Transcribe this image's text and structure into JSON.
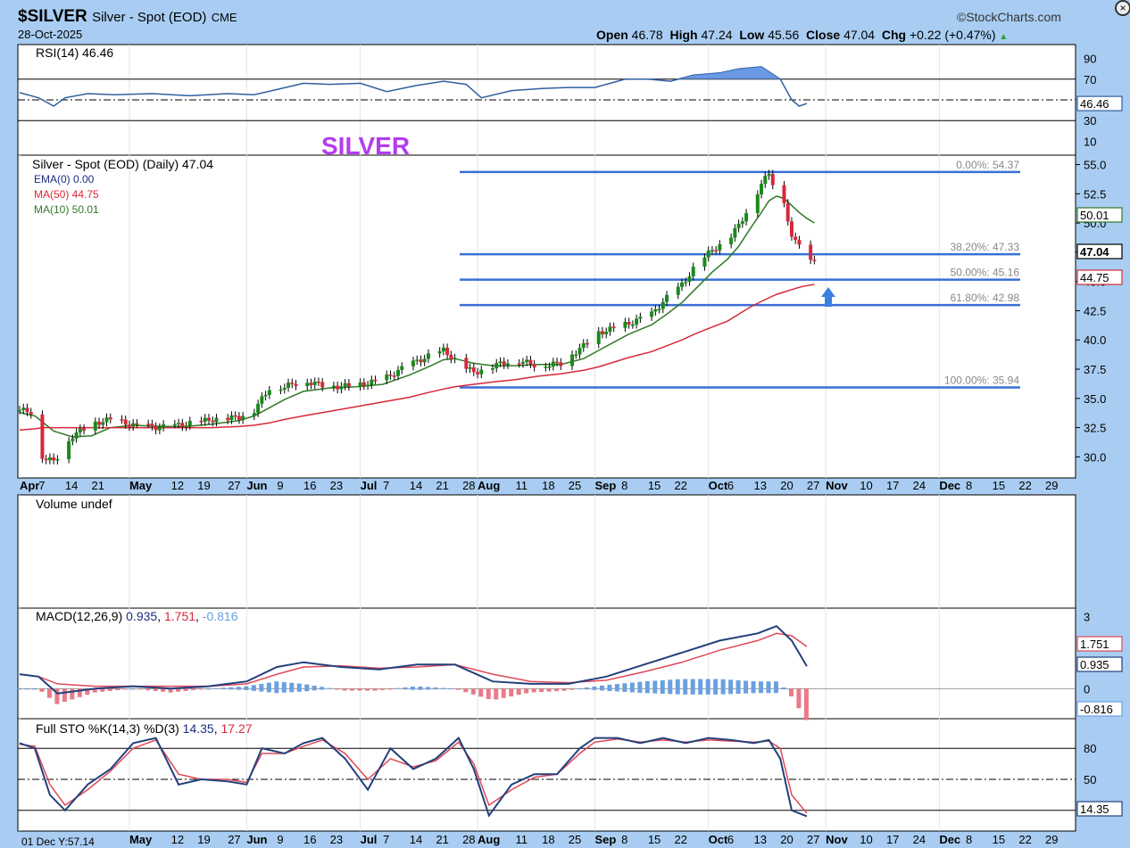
{
  "header": {
    "symbol": "$SILVER",
    "name": "Silver - Spot (EOD)",
    "exchange": "CME",
    "date": "28-Oct-2025",
    "brand": "©StockCharts.com",
    "open_label": "Open",
    "open": "46.78",
    "high_label": "High",
    "high": "47.24",
    "low_label": "Low",
    "low": "45.56",
    "close_label": "Close",
    "close": "47.04",
    "chg_label": "Chg",
    "chg": "+0.22 (+0.47%)"
  },
  "annotation_text": "SILVER",
  "panels": {
    "rsi": {
      "label": "RSI(14)",
      "value": "46.46",
      "ticks": [
        "90",
        "70",
        "50",
        "30",
        "10"
      ],
      "tag": "46.46"
    },
    "price": {
      "label": "Silver - Spot (EOD) (Daily) 47.04",
      "legend": [
        {
          "text": "EMA(0) 0.00",
          "color": "#1a2f80"
        },
        {
          "text": "MA(50) 44.75",
          "color": "#d8283a"
        },
        {
          "text": "MA(10) 50.01",
          "color": "#2f7a26"
        }
      ],
      "ticks": [
        "55.0",
        "52.5",
        "50.0",
        "47.5",
        "45.0",
        "42.5",
        "40.0",
        "37.5",
        "35.0",
        "32.5",
        "30.0"
      ],
      "tags": {
        "ma10": "50.01",
        "close": "47.04",
        "ma50": "44.75"
      }
    },
    "volume": {
      "label": "Volume undef"
    },
    "macd": {
      "label": "MACD(12,26,9)",
      "v1": "0.935",
      "v2": "1.751",
      "v3": "-0.816",
      "ticks": [
        "3",
        "2",
        "0"
      ],
      "tags": {
        "signal": "1.751",
        "macd": "0.935",
        "hist": "-0.816"
      }
    },
    "sto": {
      "label": "Full STO %K(14,3) %D(3)",
      "v1": "14.35",
      "v2": "17.27",
      "ticks": [
        "80",
        "50"
      ],
      "tag": "14.35"
    }
  },
  "x_axis": {
    "labels": [
      {
        "t": "Apr",
        "b": true,
        "d": 0
      },
      {
        "t": "7",
        "d": 5
      },
      {
        "t": "14",
        "d": 12
      },
      {
        "t": "21",
        "d": 19
      },
      {
        "t": "May",
        "b": true,
        "d": 29
      },
      {
        "t": "12",
        "d": 40
      },
      {
        "t": "19",
        "d": 47
      },
      {
        "t": "27",
        "d": 55
      },
      {
        "t": "Jun",
        "b": true,
        "d": 60
      },
      {
        "t": "9",
        "d": 68
      },
      {
        "t": "16",
        "d": 75
      },
      {
        "t": "23",
        "d": 82
      },
      {
        "t": "Jul",
        "b": true,
        "d": 90
      },
      {
        "t": "7",
        "d": 96
      },
      {
        "t": "14",
        "d": 103
      },
      {
        "t": "21",
        "d": 110
      },
      {
        "t": "28",
        "d": 117
      },
      {
        "t": "Aug",
        "b": true,
        "d": 121
      },
      {
        "t": "11",
        "d": 131
      },
      {
        "t": "18",
        "d": 138
      },
      {
        "t": "25",
        "d": 145
      },
      {
        "t": "Sep",
        "b": true,
        "d": 152
      },
      {
        "t": "8",
        "d": 159
      },
      {
        "t": "15",
        "d": 166
      },
      {
        "t": "22",
        "d": 173
      },
      {
        "t": "Oct",
        "b": true,
        "d": 182
      },
      {
        "t": "6",
        "d": 187
      },
      {
        "t": "13",
        "d": 194
      },
      {
        "t": "20",
        "d": 201
      },
      {
        "t": "27",
        "d": 208
      },
      {
        "t": "Nov",
        "b": true,
        "d": 213
      },
      {
        "t": "10",
        "d": 222
      },
      {
        "t": "17",
        "d": 229
      },
      {
        "t": "24",
        "d": 236
      },
      {
        "t": "Dec",
        "b": true,
        "d": 243
      },
      {
        "t": "8",
        "d": 250
      },
      {
        "t": "15",
        "d": 257
      },
      {
        "t": "22",
        "d": 264
      },
      {
        "t": "29",
        "d": 271
      }
    ],
    "footer_note": "01 Dec Y:57.14"
  },
  "chart_data": {
    "type": "line",
    "title": "$SILVER Silver - Spot (EOD) CME",
    "xlabel": "",
    "ylabel": "",
    "ylim": [
      28.5,
      55.5
    ],
    "x": [
      "2025-04-01",
      "2025-04-05",
      "2025-04-07",
      "2025-04-10",
      "2025-04-15",
      "2025-04-20",
      "2025-04-25",
      "2025-05-01",
      "2025-05-08",
      "2025-05-15",
      "2025-05-22",
      "2025-05-29",
      "2025-06-02",
      "2025-06-06",
      "2025-06-10",
      "2025-06-15",
      "2025-06-22",
      "2025-06-29",
      "2025-07-06",
      "2025-07-13",
      "2025-07-18",
      "2025-07-22",
      "2025-07-25",
      "2025-07-30",
      "2025-08-04",
      "2025-08-10",
      "2025-08-16",
      "2025-08-22",
      "2025-08-28",
      "2025-09-01",
      "2025-09-05",
      "2025-09-09",
      "2025-09-15",
      "2025-09-19",
      "2025-09-23",
      "2025-09-27",
      "2025-10-01",
      "2025-10-05",
      "2025-10-08",
      "2025-10-11",
      "2025-10-14",
      "2025-10-16",
      "2025-10-18",
      "2025-10-20",
      "2025-10-22",
      "2025-10-24",
      "2025-10-26",
      "2025-10-28"
    ],
    "series": [
      {
        "name": "Silver - Spot (EOD)",
        "values": [
          34.0,
          33.8,
          30.0,
          29.6,
          31.8,
          32.8,
          33.2,
          32.7,
          32.5,
          32.8,
          33.2,
          33.4,
          34.0,
          35.9,
          36.0,
          36.5,
          36.0,
          36.1,
          36.6,
          37.9,
          38.6,
          39.1,
          38.3,
          37.2,
          37.8,
          38.3,
          37.8,
          38.0,
          39.5,
          40.6,
          41.0,
          41.4,
          42.2,
          43.6,
          44.7,
          46.5,
          47.7,
          48.5,
          49.8,
          51.5,
          53.3,
          54.3,
          52.6,
          51.9,
          48.6,
          48.4,
          46.8,
          47.04
        ]
      },
      {
        "name": "MA(10)",
        "values": [
          33.8,
          33.5,
          33.0,
          32.2,
          31.7,
          31.8,
          32.5,
          32.7,
          32.6,
          32.6,
          32.8,
          33.1,
          33.5,
          34.2,
          34.9,
          35.6,
          35.9,
          36.0,
          36.2,
          37.0,
          37.7,
          38.3,
          38.4,
          38.0,
          37.8,
          37.8,
          37.9,
          37.9,
          38.4,
          39.1,
          39.8,
          40.5,
          41.3,
          42.2,
          43.2,
          44.5,
          45.8,
          46.9,
          48.0,
          49.5,
          50.9,
          51.9,
          52.3,
          52.1,
          51.5,
          50.9,
          50.4,
          50.01
        ]
      },
      {
        "name": "MA(50)",
        "values": [
          32.3,
          32.4,
          32.5,
          32.5,
          32.5,
          32.5,
          32.5,
          32.5,
          32.5,
          32.5,
          32.5,
          32.6,
          32.7,
          32.9,
          33.2,
          33.5,
          33.9,
          34.3,
          34.7,
          35.1,
          35.5,
          35.8,
          36.0,
          36.2,
          36.4,
          36.6,
          36.9,
          37.1,
          37.4,
          37.7,
          38.1,
          38.5,
          39.0,
          39.5,
          40.0,
          40.6,
          41.1,
          41.6,
          42.2,
          42.8,
          43.3,
          43.6,
          43.9,
          44.1,
          44.3,
          44.5,
          44.65,
          44.75
        ]
      }
    ],
    "fibonacci": [
      {
        "label": "0.00%: 54.37",
        "value": 54.37
      },
      {
        "label": "38.20%: 47.33",
        "value": 47.33
      },
      {
        "label": "50.00%: 45.16",
        "value": 45.16
      },
      {
        "label": "61.80%: 42.98",
        "value": 42.98
      },
      {
        "label": "100.00%: 35.94",
        "value": 35.94
      }
    ],
    "rsi": {
      "x_days": [
        0,
        5,
        9,
        12,
        18,
        25,
        35,
        45,
        55,
        62,
        68,
        75,
        82,
        90,
        97,
        105,
        112,
        118,
        122,
        130,
        138,
        145,
        152,
        160,
        166,
        172,
        178,
        185,
        190,
        196,
        201,
        204,
        206,
        208
      ],
      "values": [
        57,
        52,
        44,
        52,
        56,
        55,
        56,
        54,
        56,
        55,
        60,
        66,
        65,
        66,
        58,
        64,
        68,
        65,
        52,
        59,
        61,
        62,
        62,
        70,
        70,
        68,
        74,
        76,
        80,
        82,
        70,
        50,
        44,
        46.46
      ]
    },
    "macd": {
      "x_days": [
        0,
        5,
        10,
        20,
        30,
        40,
        50,
        60,
        68,
        75,
        85,
        95,
        105,
        115,
        125,
        135,
        145,
        155,
        165,
        175,
        185,
        195,
        200,
        204,
        208
      ],
      "macd": [
        0.6,
        0.5,
        -0.2,
        0.0,
        0.1,
        0.0,
        0.1,
        0.3,
        0.9,
        1.1,
        0.9,
        0.8,
        1.0,
        1.0,
        0.3,
        0.2,
        0.2,
        0.5,
        1.0,
        1.5,
        2.0,
        2.3,
        2.6,
        2.0,
        0.935
      ],
      "signal": [
        0.6,
        0.5,
        0.2,
        0.1,
        0.1,
        0.1,
        0.1,
        0.2,
        0.6,
        0.9,
        0.95,
        0.85,
        0.9,
        1.0,
        0.6,
        0.3,
        0.25,
        0.35,
        0.7,
        1.1,
        1.6,
        2.0,
        2.3,
        2.2,
        1.751
      ]
    },
    "sto": {
      "x_days": [
        0,
        4,
        8,
        12,
        18,
        24,
        30,
        36,
        42,
        48,
        55,
        60,
        64,
        70,
        75,
        80,
        86,
        92,
        98,
        104,
        110,
        116,
        120,
        124,
        130,
        136,
        142,
        148,
        152,
        158,
        164,
        170,
        176,
        182,
        188,
        194,
        198,
        201,
        204,
        208
      ],
      "k": [
        85,
        80,
        35,
        20,
        45,
        60,
        85,
        90,
        45,
        50,
        48,
        45,
        80,
        75,
        85,
        90,
        70,
        40,
        80,
        60,
        70,
        90,
        60,
        15,
        45,
        55,
        55,
        80,
        90,
        90,
        85,
        90,
        85,
        90,
        88,
        85,
        88,
        70,
        20,
        14.35
      ],
      "d": [
        84,
        82,
        45,
        25,
        40,
        58,
        80,
        88,
        55,
        50,
        50,
        47,
        75,
        75,
        82,
        88,
        75,
        50,
        70,
        62,
        68,
        86,
        65,
        25,
        40,
        52,
        55,
        75,
        86,
        89,
        86,
        88,
        86,
        88,
        87,
        86,
        87,
        80,
        35,
        17.27
      ]
    }
  }
}
